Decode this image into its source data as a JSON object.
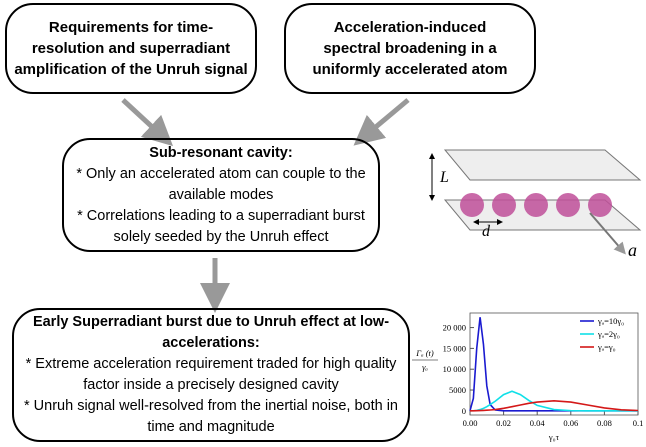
{
  "boxes": [
    {
      "lines": [
        "Requirements for time-",
        "resolution and superradiant",
        "amplification of the Unruh signal"
      ]
    },
    {
      "lines": [
        "Acceleration-induced",
        "spectral broadening in a",
        "uniformly accelerated atom"
      ]
    },
    {
      "title_lines": [
        "Sub-resonant cavity:"
      ],
      "lines": [
        "* Only an accelerated atom can couple to the",
        "available modes",
        "* Correlations leading to a superradiant burst",
        "solely seeded by the Unruh effect"
      ]
    },
    {
      "title_lines": [
        "Early Superradiant burst due to Unruh effect at low-",
        "accelerations:"
      ],
      "lines": [
        "* Extreme acceleration requirement traded for high quality",
        "factor inside a precisely designed cavity",
        "* Unruh signal well-resolved from the inertial noise, both in",
        "time and magnitude"
      ]
    }
  ],
  "illustration": {
    "labels": {
      "L": "L",
      "d": "d",
      "a": "a"
    }
  },
  "chart_data": {
    "type": "line",
    "ylabel_numerator": "Γₐ (t)",
    "ylabel_denominator": "γₐ",
    "xlabel": "γ₀τ",
    "x": [
      0,
      0.002,
      0.004,
      0.006,
      0.008,
      0.01,
      0.012,
      0.015,
      0.02,
      0.025,
      0.03,
      0.035,
      0.04,
      0.05,
      0.06,
      0.07,
      0.08,
      0.09,
      0.1
    ],
    "series": [
      {
        "name": "γₐ=10γ₀",
        "color": "#1a1ad0",
        "values": [
          0,
          3000,
          15000,
          22500,
          16000,
          6000,
          1500,
          200,
          0,
          0,
          0,
          0,
          0,
          0,
          0,
          0,
          0,
          0,
          0
        ]
      },
      {
        "name": "γₐ=2γ₀",
        "color": "#10e0e8",
        "values": [
          0,
          20,
          100,
          300,
          600,
          1000,
          1500,
          2300,
          3900,
          4700,
          3900,
          2500,
          1300,
          300,
          50,
          0,
          0,
          0,
          0
        ]
      },
      {
        "name": "γₐ=γ₀",
        "color": "#d41818",
        "values": [
          0,
          10,
          30,
          60,
          100,
          150,
          200,
          300,
          600,
          1000,
          1400,
          1800,
          2100,
          2400,
          2100,
          1400,
          700,
          250,
          80
        ]
      }
    ],
    "xlim": [
      0,
      0.1
    ],
    "ylim": [
      -1000,
      23500
    ],
    "xticks": [
      {
        "value": 0,
        "label": "0.00"
      },
      {
        "value": 0.02,
        "label": "0.02"
      },
      {
        "value": 0.04,
        "label": "0.04"
      },
      {
        "value": 0.06,
        "label": "0.06"
      },
      {
        "value": 0.08,
        "label": "0.08"
      },
      {
        "value": 0.1,
        "label": "0.1"
      }
    ],
    "yticks": [
      0,
      5000,
      {
        "value": 10000,
        "label": "10 000"
      },
      {
        "value": 15000,
        "label": "15 000"
      },
      {
        "value": 20000,
        "label": "20 000"
      }
    ],
    "legend": "upper right"
  }
}
